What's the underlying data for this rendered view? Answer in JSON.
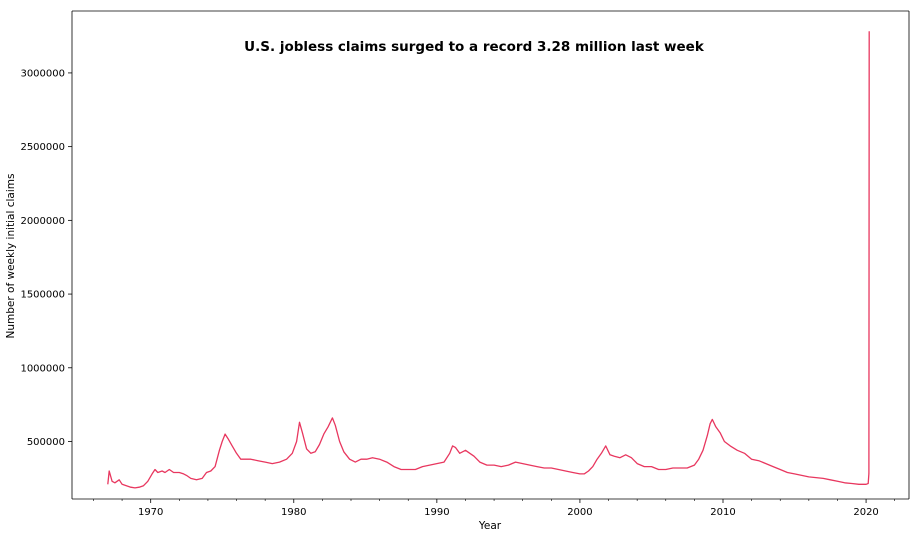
{
  "chart_data": {
    "type": "line",
    "title": "U.S. jobless claims surged to a record 3.28 million last week",
    "xlabel": "Year",
    "ylabel": "Number of weekly initial claims",
    "xlim": [
      1964.5,
      2023
    ],
    "ylim": [
      110000,
      3420000
    ],
    "x_ticks": [
      1970,
      1980,
      1990,
      2000,
      2010,
      2020
    ],
    "x_tick_labels": [
      "1970",
      "1980",
      "1990",
      "2000",
      "2010",
      "2020"
    ],
    "y_ticks": [
      500000,
      1000000,
      1500000,
      2000000,
      2500000,
      3000000
    ],
    "y_tick_labels": [
      "500000",
      "1000000",
      "1500000",
      "2000000",
      "2500000",
      "3000000"
    ],
    "grid": false,
    "legend": "none",
    "line_color": "#e8375f",
    "series": [
      {
        "x": [
          1967.0,
          1967.1,
          1967.3,
          1967.5,
          1967.8,
          1968.0,
          1968.3,
          1968.6,
          1968.9,
          1969.2,
          1969.5,
          1969.8,
          1970.1,
          1970.3,
          1970.5,
          1970.8,
          1971.0,
          1971.3,
          1971.6,
          1972.0,
          1972.3,
          1972.5,
          1972.8,
          1973.2,
          1973.6,
          1973.9,
          1974.2,
          1974.5,
          1974.8,
          1975.0,
          1975.2,
          1975.4,
          1975.7,
          1976.0,
          1976.3,
          1976.6,
          1977.0,
          1977.5,
          1978.0,
          1978.5,
          1979.0,
          1979.5,
          1979.9,
          1980.2,
          1980.4,
          1980.6,
          1980.9,
          1981.2,
          1981.5,
          1981.8,
          1982.1,
          1982.4,
          1982.7,
          1982.9,
          1983.2,
          1983.5,
          1983.9,
          1984.3,
          1984.7,
          1985.1,
          1985.5,
          1986.0,
          1986.5,
          1987.0,
          1987.5,
          1988.0,
          1988.5,
          1989.0,
          1989.5,
          1990.0,
          1990.5,
          1990.9,
          1991.1,
          1991.3,
          1991.6,
          1992.0,
          1992.3,
          1992.6,
          1993.0,
          1993.5,
          1994.0,
          1994.5,
          1995.0,
          1995.5,
          1996.0,
          1996.5,
          1997.0,
          1997.5,
          1998.0,
          1998.5,
          1999.0,
          1999.5,
          2000.0,
          2000.3,
          2000.6,
          2000.9,
          2001.2,
          2001.5,
          2001.8,
          2002.1,
          2002.4,
          2002.8,
          2003.2,
          2003.6,
          2004.0,
          2004.5,
          2005.0,
          2005.5,
          2006.0,
          2006.5,
          2007.0,
          2007.5,
          2008.0,
          2008.3,
          2008.6,
          2008.9,
          2009.1,
          2009.25,
          2009.5,
          2009.8,
          2010.1,
          2010.5,
          2011.0,
          2011.5,
          2012.0,
          2012.5,
          2013.0,
          2013.5,
          2014.0,
          2014.5,
          2015.0,
          2015.5,
          2016.0,
          2016.5,
          2017.0,
          2017.5,
          2018.0,
          2018.5,
          2019.0,
          2019.5,
          2020.0,
          2020.15,
          2020.2,
          2020.22
        ],
        "y": [
          210000,
          300000,
          230000,
          220000,
          240000,
          210000,
          200000,
          190000,
          185000,
          190000,
          200000,
          230000,
          280000,
          310000,
          290000,
          300000,
          290000,
          310000,
          290000,
          290000,
          280000,
          270000,
          250000,
          240000,
          250000,
          290000,
          300000,
          330000,
          440000,
          500000,
          550000,
          520000,
          470000,
          420000,
          380000,
          380000,
          380000,
          370000,
          360000,
          350000,
          360000,
          380000,
          420000,
          500000,
          630000,
          560000,
          450000,
          420000,
          430000,
          480000,
          550000,
          600000,
          660000,
          610000,
          500000,
          430000,
          380000,
          360000,
          380000,
          380000,
          390000,
          380000,
          360000,
          330000,
          310000,
          310000,
          310000,
          330000,
          340000,
          350000,
          360000,
          420000,
          470000,
          460000,
          420000,
          440000,
          420000,
          400000,
          360000,
          340000,
          340000,
          330000,
          340000,
          360000,
          350000,
          340000,
          330000,
          320000,
          320000,
          310000,
          300000,
          290000,
          280000,
          280000,
          300000,
          330000,
          380000,
          420000,
          470000,
          410000,
          400000,
          390000,
          410000,
          390000,
          350000,
          330000,
          330000,
          310000,
          310000,
          320000,
          320000,
          320000,
          340000,
          380000,
          440000,
          540000,
          620000,
          650000,
          600000,
          560000,
          500000,
          470000,
          440000,
          420000,
          380000,
          370000,
          350000,
          330000,
          310000,
          290000,
          280000,
          270000,
          260000,
          255000,
          250000,
          240000,
          230000,
          220000,
          215000,
          210000,
          210000,
          215000,
          282000,
          3283000
        ]
      }
    ]
  }
}
